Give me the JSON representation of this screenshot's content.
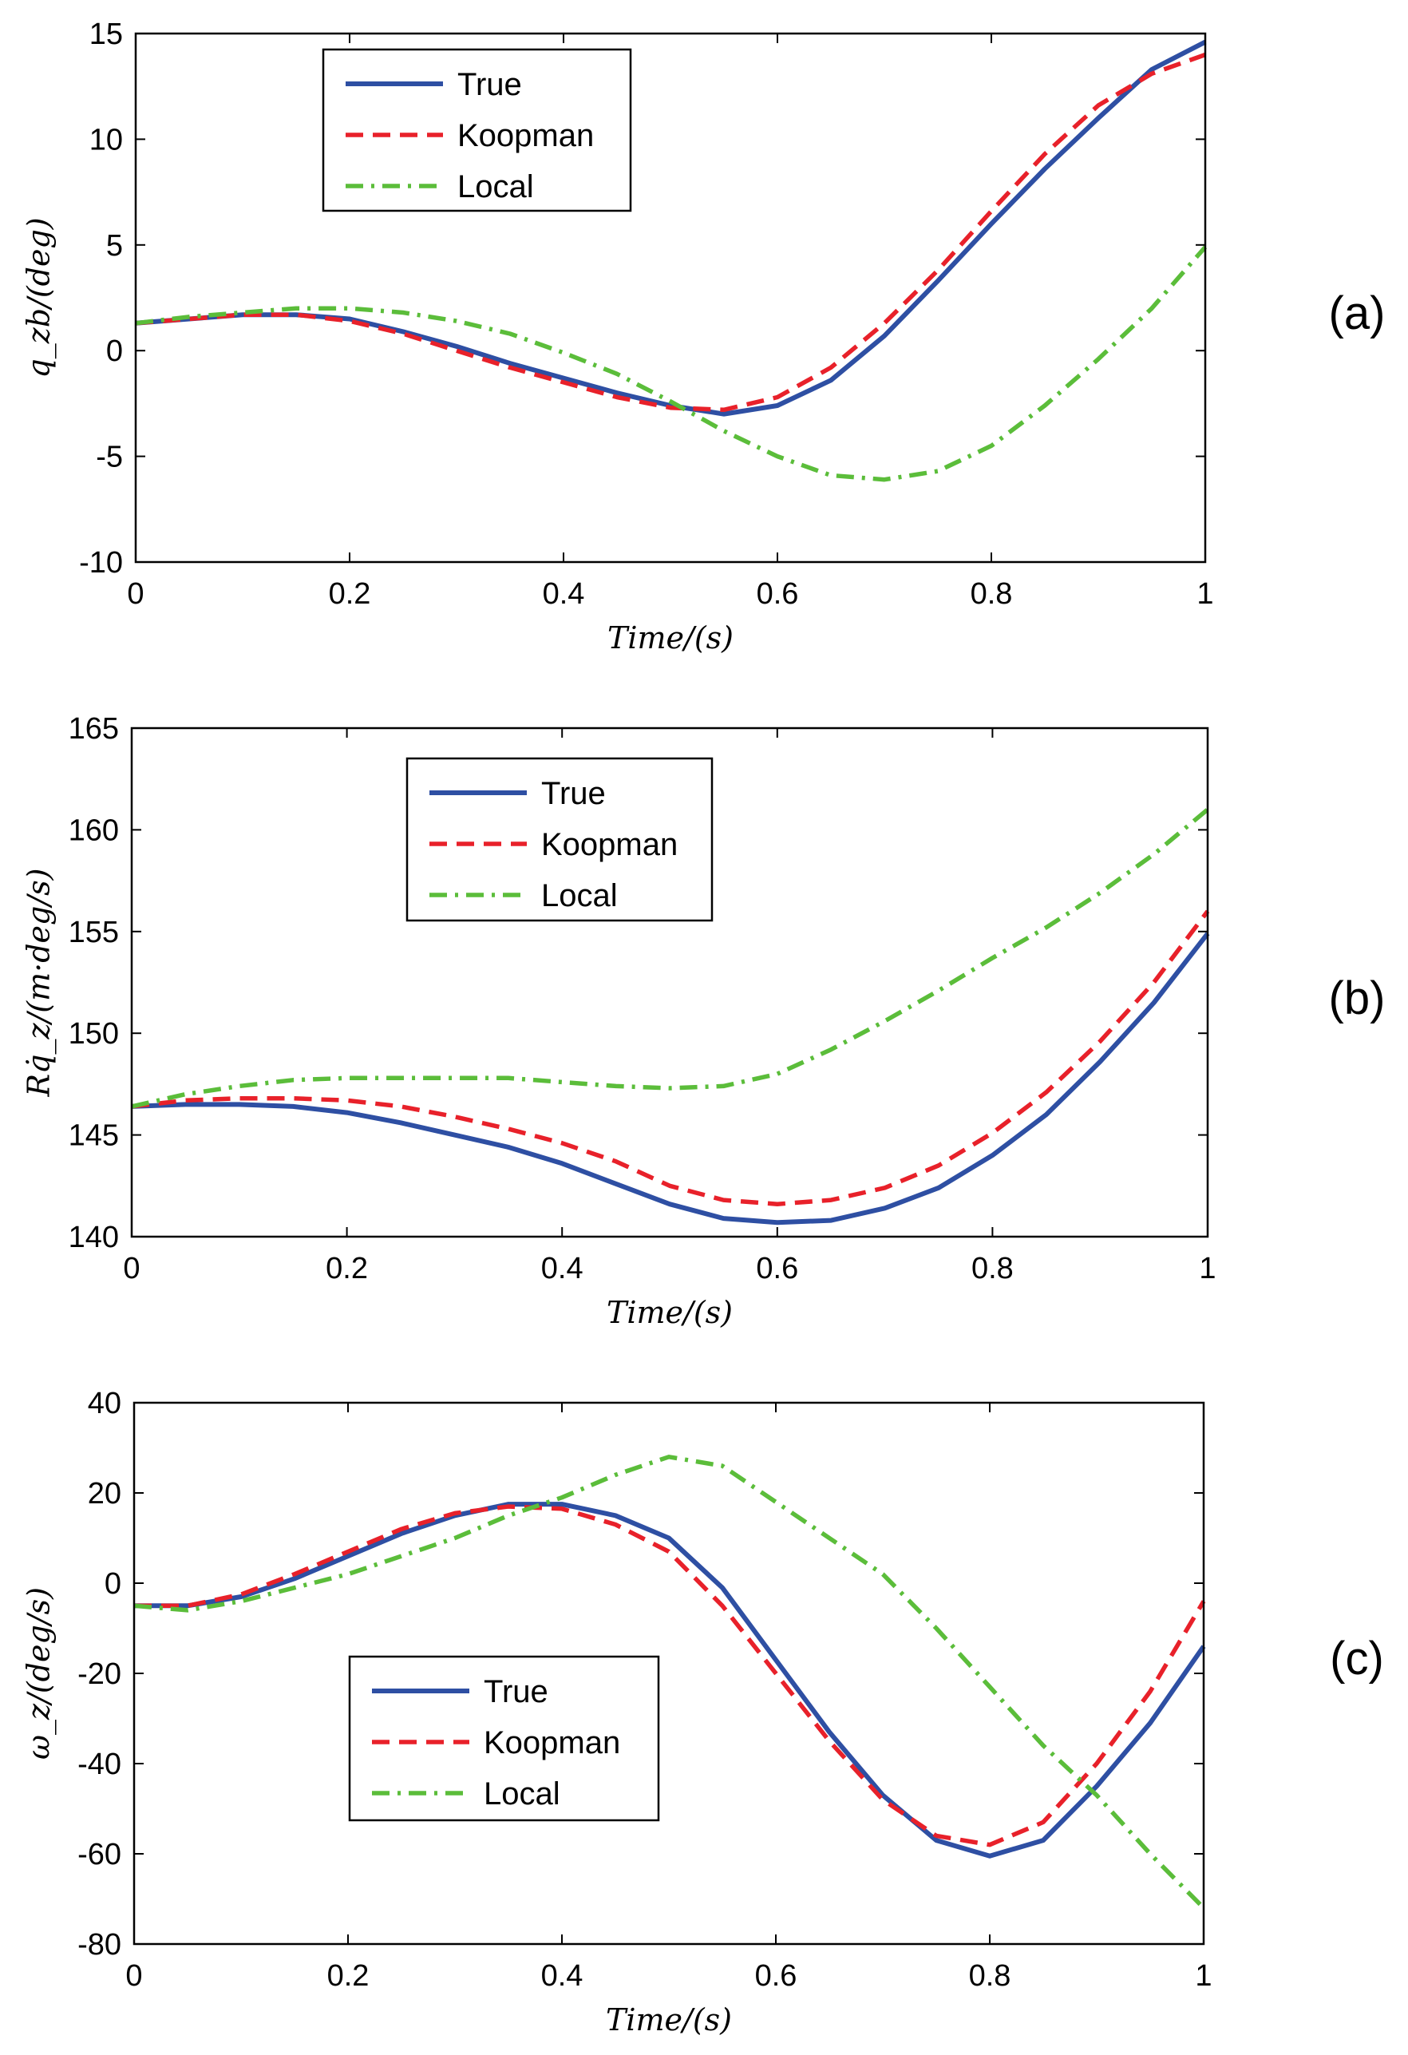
{
  "chart_data": [
    {
      "type": "line",
      "panel_label": "(a)",
      "xlabel": "Time/(s)",
      "ylabel": "q_zb/(deg)",
      "xlim": [
        0,
        1
      ],
      "ylim": [
        -10,
        15
      ],
      "xticks": [
        "0",
        "0.2",
        "0.4",
        "0.6",
        "0.8",
        "1"
      ],
      "xtick_values": [
        0,
        0.2,
        0.4,
        0.6,
        0.8,
        1
      ],
      "yticks": [
        "-10",
        "-5",
        "0",
        "5",
        "10",
        "15"
      ],
      "ytick_values": [
        -10,
        -5,
        0,
        5,
        10,
        15
      ],
      "legend_position": "top-left",
      "series": [
        {
          "name": "True",
          "style": "solid",
          "color": "#2E4FA3",
          "x": [
            0,
            0.05,
            0.1,
            0.15,
            0.2,
            0.25,
            0.3,
            0.35,
            0.4,
            0.45,
            0.5,
            0.55,
            0.6,
            0.65,
            0.7,
            0.75,
            0.8,
            0.85,
            0.9,
            0.95,
            1
          ],
          "y": [
            1.3,
            1.5,
            1.7,
            1.7,
            1.5,
            0.9,
            0.2,
            -0.6,
            -1.3,
            -2.0,
            -2.6,
            -3.0,
            -2.6,
            -1.4,
            0.7,
            3.3,
            6.0,
            8.6,
            11.0,
            13.3,
            14.6
          ]
        },
        {
          "name": "Koopman",
          "style": "dashed",
          "color": "#E8212A",
          "x": [
            0,
            0.05,
            0.1,
            0.15,
            0.2,
            0.25,
            0.3,
            0.35,
            0.4,
            0.45,
            0.5,
            0.55,
            0.6,
            0.65,
            0.7,
            0.75,
            0.8,
            0.85,
            0.9,
            0.95,
            1
          ],
          "y": [
            1.3,
            1.5,
            1.7,
            1.7,
            1.4,
            0.8,
            0.0,
            -0.8,
            -1.5,
            -2.2,
            -2.7,
            -2.8,
            -2.2,
            -0.8,
            1.3,
            3.8,
            6.6,
            9.3,
            11.6,
            13.1,
            14.0
          ]
        },
        {
          "name": "Local",
          "style": "dashdot",
          "color": "#5BBD3A",
          "x": [
            0,
            0.05,
            0.1,
            0.15,
            0.2,
            0.25,
            0.3,
            0.35,
            0.4,
            0.45,
            0.5,
            0.55,
            0.6,
            0.65,
            0.7,
            0.75,
            0.8,
            0.85,
            0.9,
            0.95,
            1
          ],
          "y": [
            1.3,
            1.6,
            1.8,
            2.0,
            2.0,
            1.8,
            1.4,
            0.8,
            -0.1,
            -1.1,
            -2.4,
            -3.8,
            -5.0,
            -5.9,
            -6.1,
            -5.7,
            -4.5,
            -2.6,
            -0.4,
            2.0,
            4.9
          ]
        }
      ]
    },
    {
      "type": "line",
      "panel_label": "(b)",
      "xlabel": "Time/(s)",
      "ylabel": "Rq̇_z/(m·deg/s)",
      "xlim": [
        0,
        1
      ],
      "ylim": [
        140,
        165
      ],
      "xticks": [
        "0",
        "0.2",
        "0.4",
        "0.6",
        "0.8",
        "1"
      ],
      "xtick_values": [
        0,
        0.2,
        0.4,
        0.6,
        0.8,
        1
      ],
      "yticks": [
        "140",
        "145",
        "150",
        "155",
        "160",
        "165"
      ],
      "ytick_values": [
        140,
        145,
        150,
        155,
        160,
        165
      ],
      "legend_position": "top-center",
      "series": [
        {
          "name": "True",
          "style": "solid",
          "color": "#2E4FA3",
          "x": [
            0,
            0.05,
            0.1,
            0.15,
            0.2,
            0.25,
            0.3,
            0.35,
            0.4,
            0.45,
            0.5,
            0.55,
            0.6,
            0.65,
            0.7,
            0.75,
            0.8,
            0.85,
            0.9,
            0.95,
            1
          ],
          "y": [
            146.4,
            146.5,
            146.5,
            146.4,
            146.1,
            145.6,
            145.0,
            144.4,
            143.6,
            142.6,
            141.6,
            140.9,
            140.7,
            140.8,
            141.4,
            142.4,
            144.0,
            146.0,
            148.6,
            151.5,
            154.9
          ]
        },
        {
          "name": "Koopman",
          "style": "dashed",
          "color": "#E8212A",
          "x": [
            0,
            0.05,
            0.1,
            0.15,
            0.2,
            0.25,
            0.3,
            0.35,
            0.4,
            0.45,
            0.5,
            0.55,
            0.6,
            0.65,
            0.7,
            0.75,
            0.8,
            0.85,
            0.9,
            0.95,
            1
          ],
          "y": [
            146.4,
            146.7,
            146.8,
            146.8,
            146.7,
            146.4,
            145.9,
            145.3,
            144.6,
            143.7,
            142.5,
            141.8,
            141.6,
            141.8,
            142.4,
            143.5,
            145.1,
            147.1,
            149.6,
            152.5,
            156.0
          ]
        },
        {
          "name": "Local",
          "style": "dashdot",
          "color": "#5BBD3A",
          "x": [
            0,
            0.05,
            0.1,
            0.15,
            0.2,
            0.25,
            0.3,
            0.35,
            0.4,
            0.45,
            0.5,
            0.55,
            0.6,
            0.65,
            0.7,
            0.75,
            0.8,
            0.85,
            0.9,
            0.95,
            1
          ],
          "y": [
            146.4,
            147.0,
            147.4,
            147.7,
            147.8,
            147.8,
            147.8,
            147.8,
            147.6,
            147.4,
            147.3,
            147.4,
            148.0,
            149.2,
            150.6,
            152.1,
            153.7,
            155.2,
            156.9,
            158.8,
            161.0
          ]
        }
      ]
    },
    {
      "type": "line",
      "panel_label": "(c)",
      "xlabel": "Time/(s)",
      "ylabel": "ω_z/(deg/s)",
      "xlim": [
        0,
        1
      ],
      "ylim": [
        -80,
        40
      ],
      "xticks": [
        "0",
        "0.2",
        "0.4",
        "0.6",
        "0.8",
        "1"
      ],
      "xtick_values": [
        0,
        0.2,
        0.4,
        0.6,
        0.8,
        1
      ],
      "yticks": [
        "-80",
        "-60",
        "-40",
        "-20",
        "0",
        "20",
        "40"
      ],
      "ytick_values": [
        -80,
        -60,
        -40,
        -20,
        0,
        20,
        40
      ],
      "legend_position": "bottom-left",
      "series": [
        {
          "name": "True",
          "style": "solid",
          "color": "#2E4FA3",
          "x": [
            0,
            0.05,
            0.1,
            0.15,
            0.2,
            0.25,
            0.3,
            0.35,
            0.4,
            0.45,
            0.5,
            0.55,
            0.6,
            0.65,
            0.7,
            0.75,
            0.8,
            0.85,
            0.9,
            0.95,
            1
          ],
          "y": [
            -5,
            -5,
            -3,
            1,
            6,
            11,
            15,
            17.5,
            17.5,
            15,
            10,
            -1,
            -17,
            -33,
            -47,
            -57,
            -60.5,
            -57,
            -45,
            -31,
            -14
          ]
        },
        {
          "name": "Koopman",
          "style": "dashed",
          "color": "#E8212A",
          "x": [
            0,
            0.05,
            0.1,
            0.15,
            0.2,
            0.25,
            0.3,
            0.35,
            0.4,
            0.45,
            0.5,
            0.55,
            0.6,
            0.65,
            0.7,
            0.75,
            0.8,
            0.85,
            0.9,
            0.95,
            1
          ],
          "y": [
            -5,
            -5,
            -2.5,
            2,
            7,
            12,
            15.5,
            17,
            16.5,
            13,
            7,
            -5,
            -20,
            -35,
            -48,
            -56,
            -58,
            -53,
            -40,
            -24,
            -4
          ]
        },
        {
          "name": "Local",
          "style": "dashdot",
          "color": "#5BBD3A",
          "x": [
            0,
            0.05,
            0.1,
            0.15,
            0.2,
            0.25,
            0.3,
            0.35,
            0.4,
            0.45,
            0.5,
            0.55,
            0.6,
            0.65,
            0.7,
            0.75,
            0.8,
            0.85,
            0.9,
            0.95,
            1
          ],
          "y": [
            -5,
            -6,
            -4,
            -1,
            2,
            6,
            10,
            15,
            19,
            24,
            28,
            26,
            18,
            10,
            2,
            -10,
            -23,
            -36,
            -47,
            -60,
            -72
          ]
        }
      ]
    }
  ]
}
